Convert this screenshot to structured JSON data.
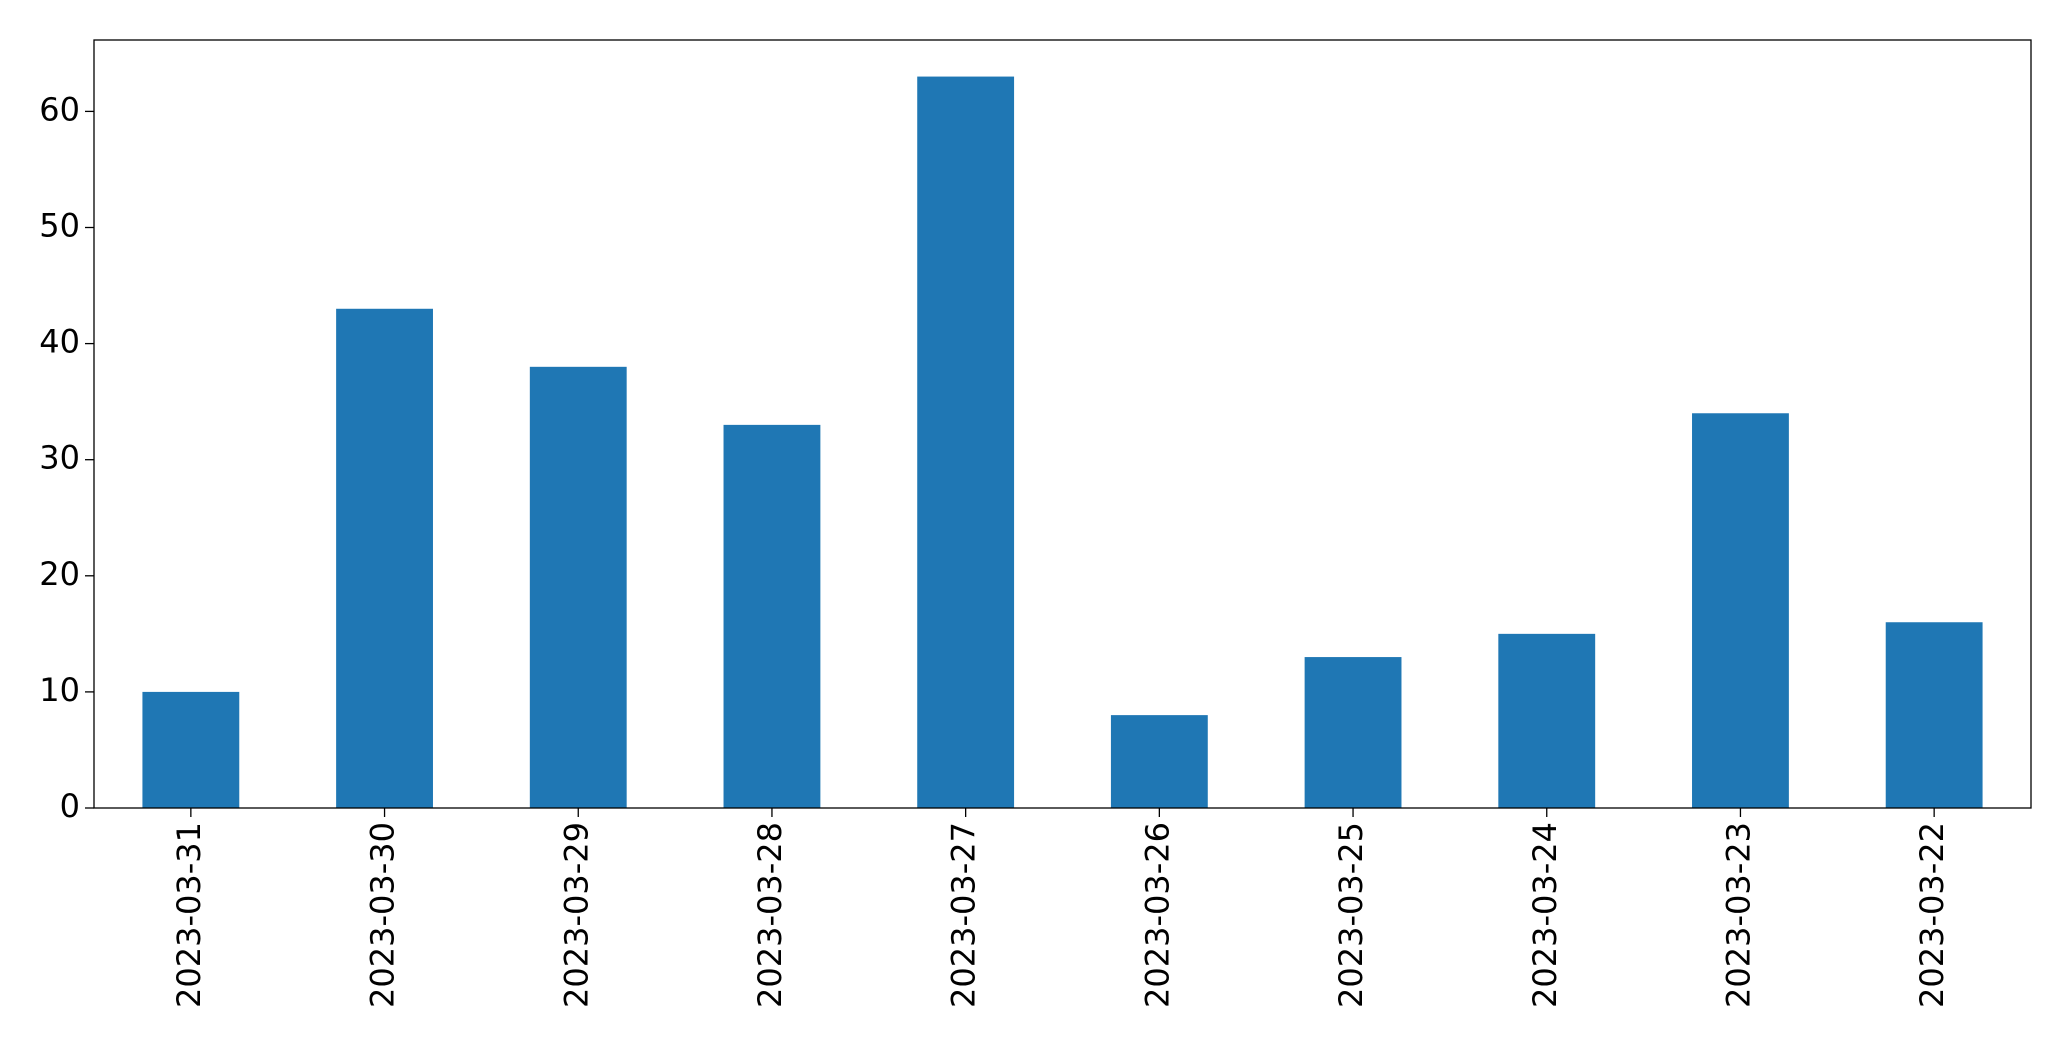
{
  "chart_data": {
    "type": "bar",
    "categories": [
      "2023-03-31",
      "2023-03-30",
      "2023-03-29",
      "2023-03-28",
      "2023-03-27",
      "2023-03-26",
      "2023-03-25",
      "2023-03-24",
      "2023-03-23",
      "2023-03-22"
    ],
    "values": [
      10,
      43,
      38,
      33,
      63,
      8,
      13,
      15,
      34,
      16
    ],
    "color": "#1f77b4",
    "ylim": [
      0,
      66.15
    ],
    "yticks": [
      0,
      10,
      20,
      30,
      40,
      50,
      60
    ],
    "grid": false
  }
}
